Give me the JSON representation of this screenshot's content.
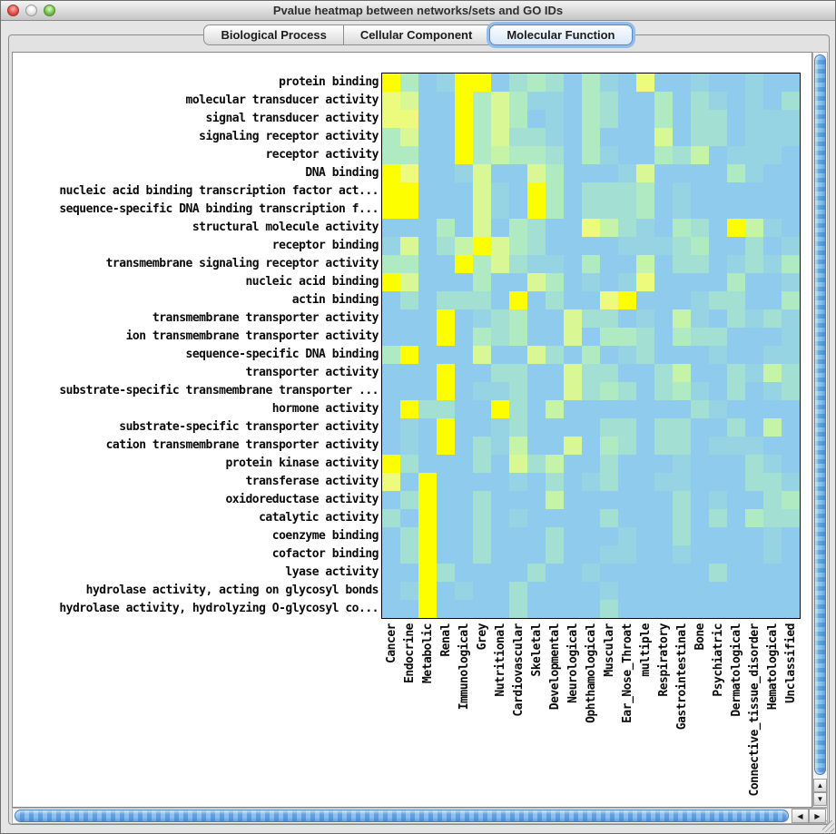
{
  "window": {
    "title": "Pvalue heatmap between networks/sets and GO IDs"
  },
  "tabs": [
    {
      "label": "Biological Process",
      "selected": false
    },
    {
      "label": "Cellular Component",
      "selected": false
    },
    {
      "label": "Molecular Function",
      "selected": true
    }
  ],
  "chart_data": {
    "type": "heatmap",
    "rows": [
      "protein binding",
      "molecular transducer activity",
      "signal transducer activity",
      "signaling receptor activity",
      "receptor activity",
      "DNA binding",
      "nucleic acid binding transcription factor act...",
      "sequence-specific DNA binding transcription f...",
      "structural molecule activity",
      "receptor binding",
      "transmembrane signaling receptor activity",
      "nucleic acid binding",
      "actin binding",
      "transmembrane transporter activity",
      "ion transmembrane transporter activity",
      "sequence-specific DNA binding",
      "transporter activity",
      "substrate-specific transmembrane transporter ...",
      "hormone activity",
      "substrate-specific transporter activity",
      "cation transmembrane transporter activity",
      "protein kinase activity",
      "transferase activity",
      "oxidoreductase activity",
      "catalytic activity",
      "coenzyme binding",
      "cofactor binding",
      "lyase activity",
      "hydrolase activity, acting on glycosyl bonds",
      "hydrolase activity, hydrolyzing O-glycosyl co..."
    ],
    "columns": [
      "Cancer",
      "Endocrine",
      "Metabolic",
      "Renal",
      "Immunological",
      "Grey",
      "Nutritional",
      "Cardiovascular",
      "Skeletal",
      "Developmental",
      "Neurological",
      "Ophthamological",
      "Muscular",
      "Ear_Nose_Throat",
      "multiple",
      "Respiratory",
      "Gastrointestinal",
      "Bone",
      "Psychiatric",
      "Dermatological",
      "Connective_tissue_disorder",
      "Hematological",
      "Unclassified"
    ],
    "palette": {
      "0": "#8FCBEC",
      "1": "#96D4E3",
      "2": "#A3DFD3",
      "3": "#B0EAC2",
      "4": "#C5F4A9",
      "5": "#D9F895",
      "6": "#ECFB7B",
      "7": "#FDFF00"
    },
    "grid": [
      "73017702320310600100100",
      "65007353110320030210102",
      "66007353010320030220111",
      "35007352210300050220111",
      "33007343320310032401110",
      "76001500530001500003100",
      "77000510730222301000000",
      "77000510730222301000000",
      "00030503200642103207410",
      "15024753200001112300201",
      "33007352110300402201213",
      "75000300530101600003001",
      "02022207020067000122003",
      "00070123005220104102121",
      "00070323005033203220001",
      "37000500520301200010011",
      "00070022005220024002142",
      "00070112005232023102012",
      "07220072040000000210000",
      "01070012000022022002040",
      "01070214005032022011100",
      "72000205240020001000210",
      "60700001020120011000221",
      "02700200040000002010023",
      "20700201000020002020322",
      "02700200020001002000010",
      "02700200020011001000010",
      "00720000200100000020000",
      "01701002000010000000000",
      "00700002000020000000000"
    ]
  },
  "scrollbars": {
    "up_glyph": "▲",
    "down_glyph": "▼",
    "left_glyph": "◀",
    "right_glyph": "▶"
  }
}
